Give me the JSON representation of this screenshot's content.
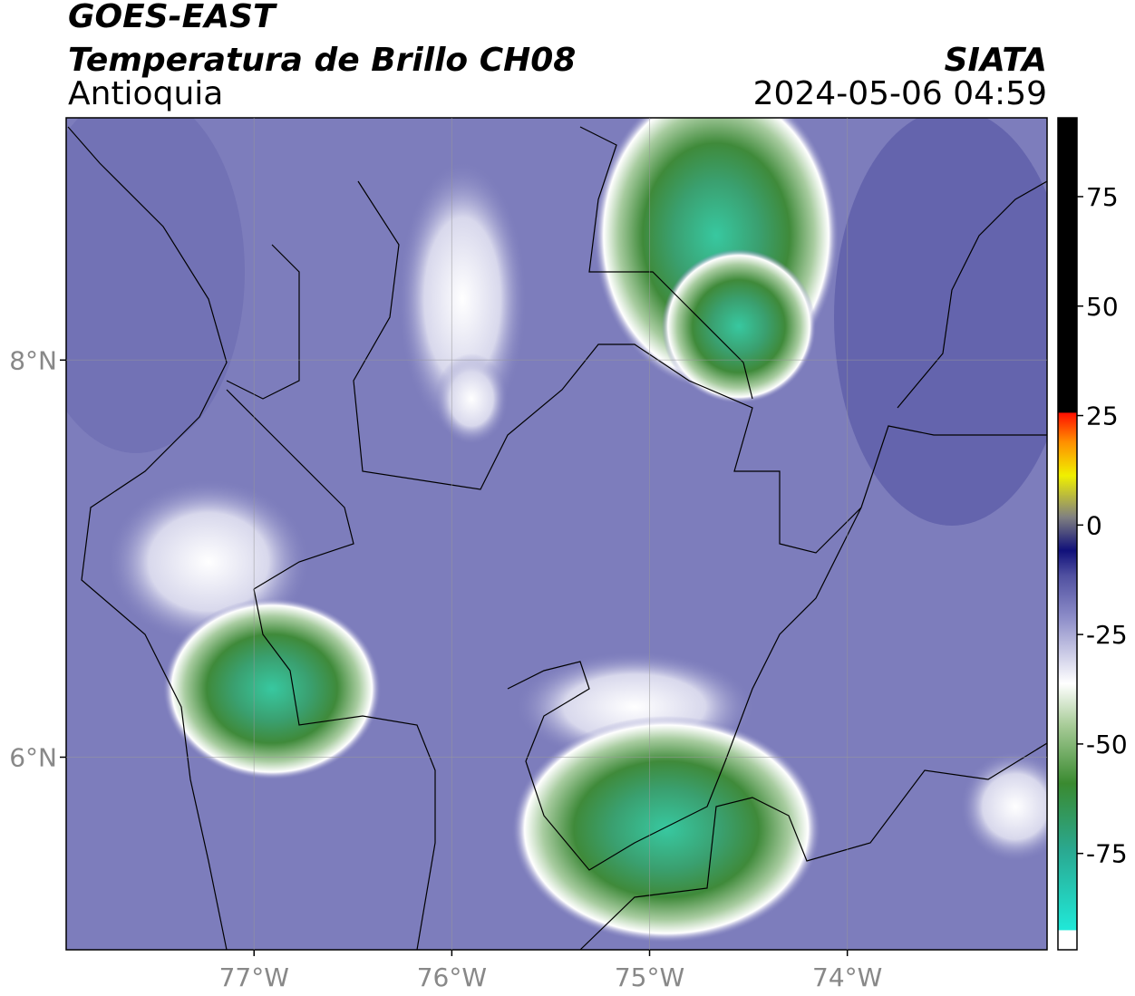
{
  "header": {
    "title": "GOES-EAST",
    "subtitle": "Temperatura de Brillo CH08",
    "region": "Antioquia",
    "source": "SIATA",
    "datetime": "2024-05-06 04:59"
  },
  "map": {
    "xlim": [
      -77.95,
      -72.99
    ],
    "ylim": [
      5.03,
      9.22
    ],
    "xticks": [
      {
        "value": -77,
        "label": "77°W"
      },
      {
        "value": -76,
        "label": "76°W"
      },
      {
        "value": -75,
        "label": "75°W"
      },
      {
        "value": -74,
        "label": "74°W"
      }
    ],
    "yticks": [
      {
        "value": 8,
        "label": "8°N"
      },
      {
        "value": 6,
        "label": "6°N"
      }
    ]
  },
  "colorbar": {
    "lim": [
      -97,
      93
    ],
    "ticks": [
      75,
      50,
      25,
      0,
      -25,
      -50,
      -75
    ]
  }
}
